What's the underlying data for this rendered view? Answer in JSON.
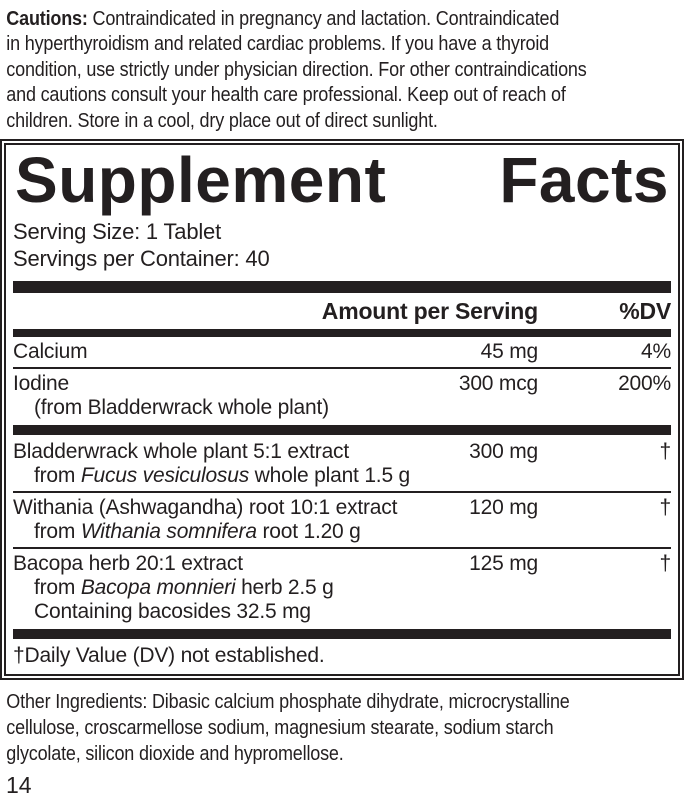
{
  "page": {
    "number": "14",
    "background_color": "#ffffff",
    "text_color": "#231f20"
  },
  "cautions": {
    "label": "Cautions:",
    "lines": [
      " Contraindicated in pregnancy and lactation. Contraindicated",
      "in hyperthyroidism and related cardiac problems. If you have a thyroid",
      "condition, use strictly under physician direction. For other contraindications",
      "and cautions consult your health care professional. Keep out of reach of",
      "children. Store in a cool, dry place out of direct sunlight."
    ]
  },
  "facts": {
    "title_left": "Supplement",
    "title_right": "Facts",
    "serving_size": "Serving Size: 1 Tablet",
    "servings_per_container": "Servings per Container: 40",
    "columns": {
      "amount": "Amount per Serving",
      "dv": "%DV"
    },
    "rows": [
      {
        "name": "Calcium",
        "amount": "45 mg",
        "dv": "4%"
      },
      {
        "name": "Iodine",
        "amount": "300 mcg",
        "dv": "200%",
        "sub": [
          {
            "pre": "(from Bladderwrack whole plant)",
            "it": "",
            "post": ""
          }
        ]
      },
      {
        "name": "Bladderwrack whole plant 5:1 extract",
        "amount": "300 mg",
        "dv": "†",
        "sub": [
          {
            "pre": "from ",
            "it": "Fucus vesiculosus",
            "post": " whole plant 1.5 g"
          }
        ]
      },
      {
        "name": "Withania (Ashwagandha) root 10:1 extract",
        "amount": "120 mg",
        "dv": "†",
        "sub": [
          {
            "pre": "from ",
            "it": "Withania somnifera",
            "post": " root 1.20 g"
          }
        ]
      },
      {
        "name": "Bacopa herb 20:1 extract",
        "amount": "125 mg",
        "dv": "†",
        "sub": [
          {
            "pre": "from ",
            "it": "Bacopa monnieri",
            "post": " herb 2.5 g"
          },
          {
            "pre": "Containing bacosides 32.5 mg",
            "it": "",
            "post": ""
          }
        ]
      }
    ],
    "footnote": "†Daily Value (DV) not established."
  },
  "other_ingredients": {
    "lines": [
      "Other Ingredients: Dibasic calcium phosphate dihydrate, microcrystalline",
      "cellulose, croscarmellose sodium, magnesium stearate, sodium starch",
      "glycolate, silicon dioxide and hypromellose."
    ]
  }
}
